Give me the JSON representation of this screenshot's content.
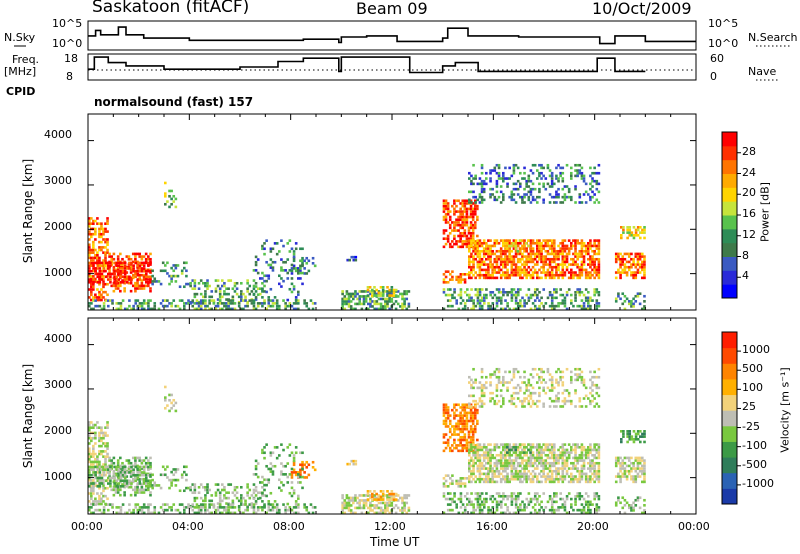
{
  "header": {
    "title": "Saskatoon (fitACF)",
    "beam": "Beam 09",
    "date": "10/Oct/2009"
  },
  "left_labels": {
    "nsky": "N.Sky",
    "freq": "Freq.",
    "freq_unit": "[MHz]",
    "cpid": "CPID"
  },
  "right_labels": {
    "nsearch": "N.Search",
    "nave": "Nave"
  },
  "cpid_text": "normalsound (fast) 157",
  "noise_panel": {
    "yticks_left": [
      "10^5",
      "10^0"
    ],
    "yticks_right": [
      "10^5",
      "10^0"
    ]
  },
  "freq_panel": {
    "yticks_left": [
      "18",
      "8"
    ],
    "yticks_right": [
      "60",
      "0"
    ]
  },
  "chart_data": [
    {
      "type": "heatmap",
      "name": "power",
      "ylabel": "Slant Range [km]",
      "yticks": [
        "4000",
        "3000",
        "2000",
        "1000"
      ],
      "ylim": [
        180,
        4600
      ],
      "xlim": [
        0,
        24
      ],
      "colorbar": {
        "label": "Power [dB]",
        "ticks": [
          "28",
          "24",
          "20",
          "16",
          "12",
          "8",
          "4"
        ],
        "colors": [
          "#0000ff",
          "#2a2ad8",
          "#3a5ac2",
          "#3e7a4a",
          "#2e8c57",
          "#58c24c",
          "#c6e43c",
          "#ffd400",
          "#ffaa00",
          "#ff7400",
          "#ff3000",
          "#ff0000"
        ]
      }
    },
    {
      "type": "heatmap",
      "name": "velocity",
      "ylabel": "Slant Range [km]",
      "yticks": [
        "4000",
        "3000",
        "2000",
        "1000"
      ],
      "ylim": [
        180,
        4600
      ],
      "xlim": [
        0,
        24
      ],
      "xlabel": "Time UT",
      "xticks": [
        "00:00",
        "04:00",
        "08:00",
        "12:00",
        "16:00",
        "20:00",
        "00:00"
      ],
      "colorbar": {
        "label": "Velocity [m s⁻¹]",
        "ticks": [
          "1000",
          "500",
          "100",
          "25",
          "-25",
          "-100",
          "-500",
          "-1000"
        ],
        "colors": [
          "#1a3aa8",
          "#2a62b4",
          "#2f7d5a",
          "#3c9a46",
          "#79c83f",
          "#bebeb4",
          "#f2d27a",
          "#ffb000",
          "#ff8400",
          "#ff4a00",
          "#ff1e00"
        ]
      }
    }
  ]
}
